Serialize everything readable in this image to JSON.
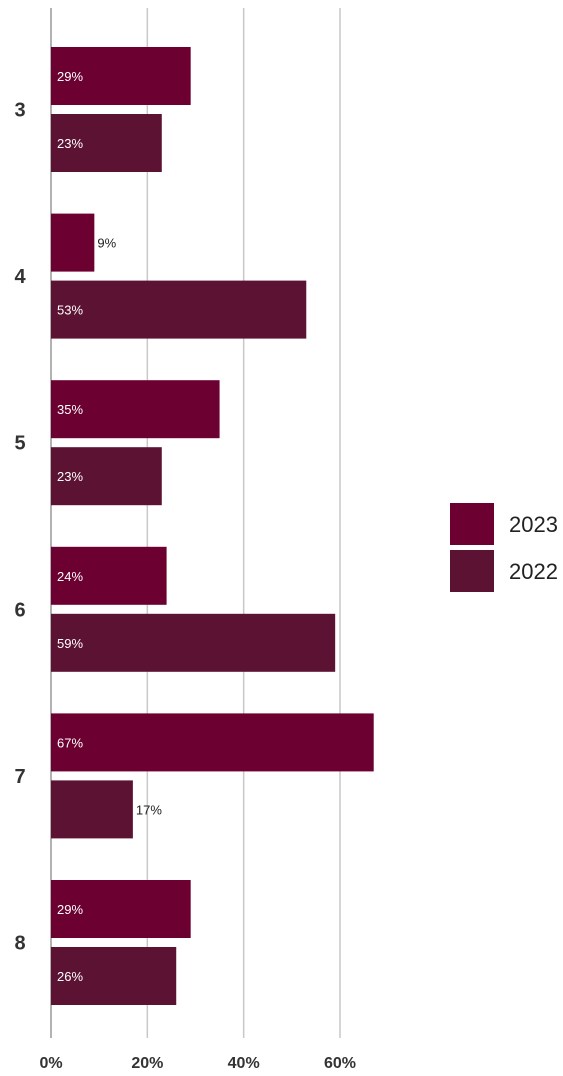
{
  "chart_data": {
    "type": "bar",
    "orientation": "horizontal",
    "title": "",
    "xlabel": "",
    "ylabel": "",
    "categories": [
      "3",
      "4",
      "5",
      "6",
      "7",
      "8"
    ],
    "series": [
      {
        "name": "2023",
        "values": [
          29,
          9,
          35,
          24,
          67,
          29
        ],
        "labels": [
          "29%",
          "9%",
          "35%",
          "24%",
          "67%",
          "29%"
        ],
        "color": "#6c0030"
      },
      {
        "name": "2022",
        "values": [
          23,
          53,
          23,
          59,
          17,
          26
        ],
        "labels": [
          "23%",
          "53%",
          "23%",
          "59%",
          "17%",
          "26%"
        ],
        "color": "#5c1232"
      }
    ],
    "xlim": [
      0,
      70
    ],
    "x_ticks": [
      0,
      20,
      40,
      60
    ],
    "x_tick_labels": [
      "0%",
      "20%",
      "40%",
      "60%"
    ],
    "grid": true,
    "legend_position": "right"
  }
}
